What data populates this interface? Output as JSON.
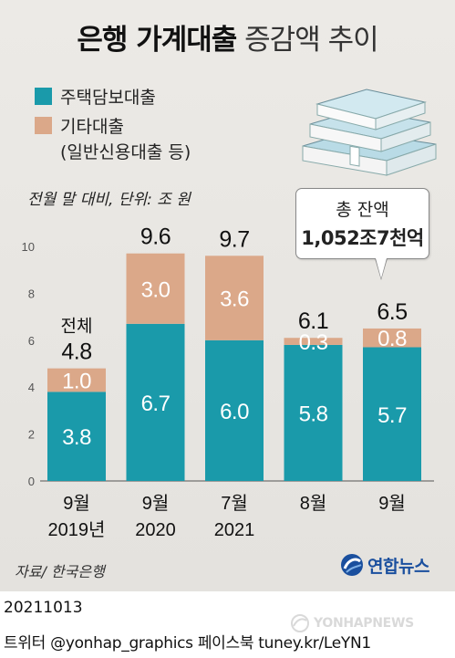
{
  "header": {
    "title_bold": "은행 가계대출",
    "title_light": "증감액 추이"
  },
  "legend": {
    "mortgage": "주택담보대출",
    "other": "기타대출",
    "other_sub": "(일반신용대출 등)"
  },
  "unit_note": "전월 말 대비, 단위: 조 원",
  "callout": {
    "line1": "총 잔액",
    "line2": "1,052조7천억"
  },
  "total_label": "전체",
  "source": "자료/ 한국은행",
  "logo_text": "연합뉴스",
  "footer": {
    "date": "20211013",
    "credits": "트위터 @yonhap_graphics  페이스북 tuney.kr/LeYN1"
  },
  "watermark": "YONHAPNEWS",
  "colors": {
    "mortgage": "#1a9aaa",
    "other": "#dba889",
    "background": "#e8e6e2"
  },
  "chart_data": {
    "type": "bar",
    "stacked": true,
    "categories": [
      "9월 2019년",
      "9월 2020",
      "7월 2021",
      "8월",
      "9월"
    ],
    "category_lines": [
      [
        "9월",
        "2019년"
      ],
      [
        "9월",
        "2020"
      ],
      [
        "7월",
        "2021"
      ],
      [
        "8월",
        ""
      ],
      [
        "9월",
        ""
      ]
    ],
    "series": [
      {
        "name": "주택담보대출",
        "values": [
          3.8,
          6.7,
          6.0,
          5.8,
          5.7
        ],
        "labels": [
          "3.8",
          "6.7",
          "6.0",
          "5.8",
          "5.7"
        ]
      },
      {
        "name": "기타대출",
        "values": [
          1.0,
          3.0,
          3.6,
          0.3,
          0.8
        ],
        "labels": [
          "1.0",
          "3.0",
          "3.6",
          "0.3",
          "0.8"
        ]
      }
    ],
    "totals": [
      4.8,
      9.6,
      9.7,
      6.1,
      6.5
    ],
    "total_labels": [
      "4.8",
      "9.6",
      "9.7",
      "6.1",
      "6.5"
    ],
    "ylim": [
      0,
      10
    ],
    "yticks": [
      0,
      2,
      4,
      6,
      8,
      10
    ],
    "title": "은행 가계대출 증감액 추이",
    "xlabel": "",
    "ylabel": "",
    "grid": false,
    "legend_position": "top-left"
  }
}
